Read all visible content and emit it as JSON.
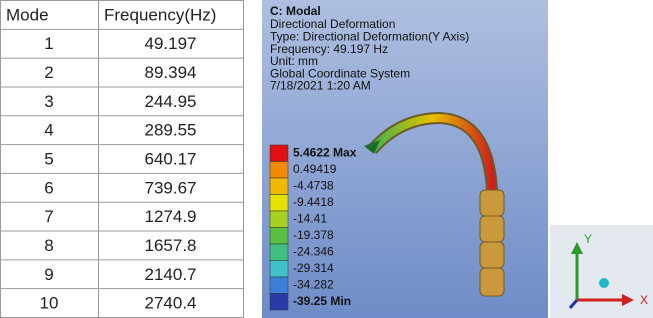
{
  "table": {
    "header": [
      "Mode",
      "Frequency(Hz)"
    ],
    "rows": [
      [
        "1",
        "49.197"
      ],
      [
        "2",
        "89.394"
      ],
      [
        "3",
        "244.95"
      ],
      [
        "4",
        "289.55"
      ],
      [
        "5",
        "640.17"
      ],
      [
        "6",
        "739.67"
      ],
      [
        "7",
        "1274.9"
      ],
      [
        "8",
        "1657.8"
      ],
      [
        "9",
        "2140.7"
      ],
      [
        "10",
        "2740.4"
      ]
    ]
  },
  "result": {
    "title": "C: Modal",
    "lines": [
      "Directional Deformation",
      "Type: Directional Deformation(Y Axis)",
      "Frequency: 49.197 Hz",
      "Unit: mm",
      "Global Coordinate System",
      "7/18/2021 1:20 AM"
    ],
    "legend": [
      "5.4622 Max",
      "0.49419",
      "-4.4738",
      "-9.4418",
      "-14.41",
      "-19.378",
      "-24.346",
      "-29.314",
      "-34.282",
      "-39.25 Min"
    ]
  },
  "triad": {
    "y_label": "Y",
    "x_label": "X"
  }
}
